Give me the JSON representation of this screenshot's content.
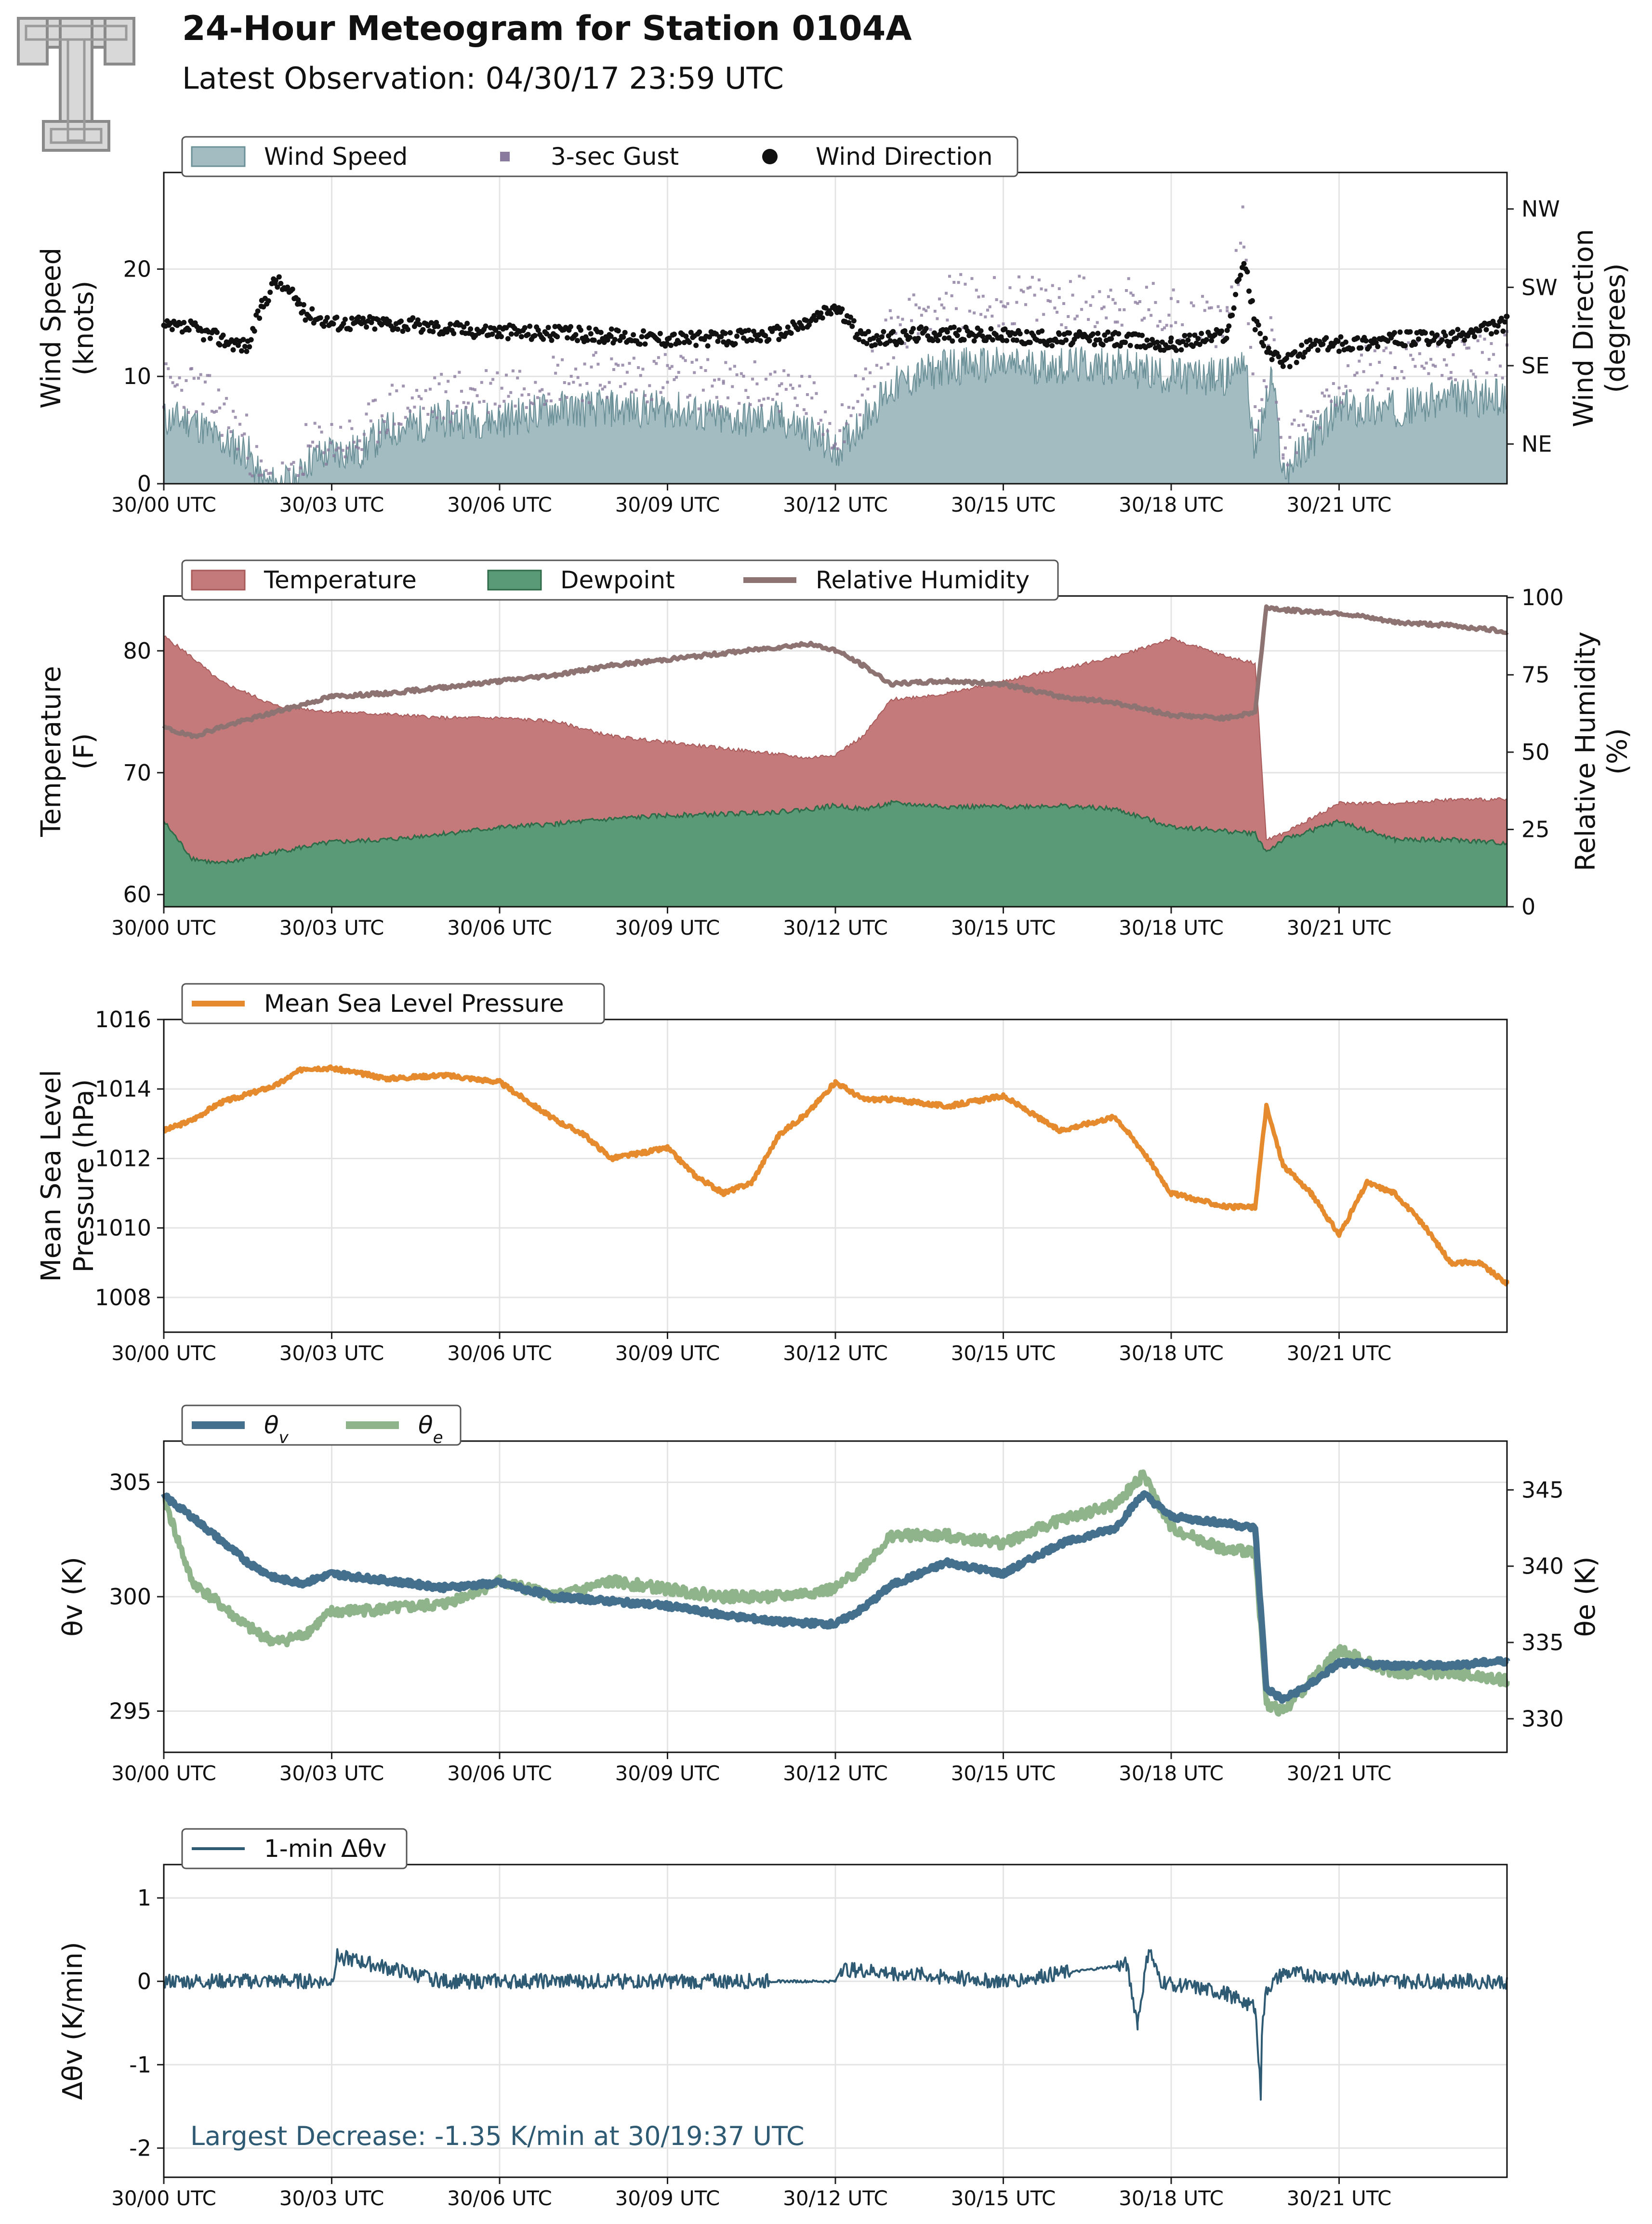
{
  "header": {
    "title": "24-Hour Meteogram for Station 0104A",
    "subtitle": "Latest Observation: 04/30/17 23:59 UTC"
  },
  "colors": {
    "wind_speed_fill": "#a3bcc2",
    "wind_speed_line": "#6b9098",
    "gust": "#8a7a9e",
    "wind_dir": "#111111",
    "temperature": "#c47a7a",
    "dewpoint": "#5a9a76",
    "rh": "#8e7373",
    "mslp": "#e68a2e",
    "theta_v": "#44708e",
    "theta_e": "#8fb38a",
    "dtheta": "#2e5a73",
    "annotation": "#2e5a73"
  },
  "x_ticks": [
    "30/00 UTC",
    "30/03 UTC",
    "30/06 UTC",
    "30/09 UTC",
    "30/12 UTC",
    "30/15 UTC",
    "30/18 UTC",
    "30/21 UTC"
  ],
  "chart_data": [
    {
      "type": "area",
      "legend": [
        "Wind Speed",
        "3-sec Gust",
        "Wind Direction"
      ],
      "ylabel_left": [
        "Wind Speed",
        "(knots)"
      ],
      "ylabel_right": [
        "Wind Direction",
        "(degrees)"
      ],
      "ylim": [
        0,
        29
      ],
      "yticks": [
        0,
        10,
        20
      ],
      "right_ylim": [
        0,
        29
      ],
      "right_ticks": [
        {
          "label": "NE",
          "pos": 3.7
        },
        {
          "label": "SE",
          "pos": 11
        },
        {
          "label": "SW",
          "pos": 18.3
        },
        {
          "label": "NW",
          "pos": 25.6
        }
      ],
      "x_hours": [
        0,
        0.5,
        1,
        1.5,
        1.75,
        2,
        2.4,
        2.5,
        3,
        3.5,
        4,
        5,
        6,
        7,
        8,
        9,
        10,
        11,
        11.5,
        12,
        12.5,
        13,
        13.5,
        14,
        15,
        16,
        17,
        18,
        19,
        19.3,
        19.5,
        19.8,
        20,
        20.5,
        21,
        22,
        23,
        24
      ],
      "wind_speed": [
        6,
        6,
        4,
        3,
        0,
        0,
        0,
        2,
        3,
        3,
        5,
        6,
        6,
        7,
        7,
        7,
        6,
        6,
        5,
        3,
        6,
        9,
        10,
        11,
        11,
        11,
        11,
        10,
        10,
        12,
        3,
        10,
        1,
        4,
        7,
        7,
        8,
        8
      ],
      "gust": [
        9,
        9,
        7,
        4,
        0,
        0,
        0,
        3,
        4,
        4,
        7,
        8,
        9,
        10,
        10,
        10,
        9,
        9,
        8,
        5,
        9,
        14,
        16,
        17,
        17,
        17,
        17,
        16,
        15,
        24,
        6,
        14,
        3,
        6,
        10,
        11,
        12,
        12
      ],
      "wind_dir": [
        14.5,
        14.5,
        13.5,
        12.8,
        16.5,
        19,
        17,
        16,
        15,
        15,
        15,
        14.5,
        14.2,
        14,
        13.8,
        13.5,
        13.5,
        14,
        15,
        16.5,
        13.5,
        13.5,
        14,
        14,
        13.8,
        13.5,
        13.5,
        13,
        14,
        21,
        15,
        12,
        11,
        13,
        13,
        13.5,
        13.5,
        15
      ]
    },
    {
      "type": "area",
      "legend": [
        "Temperature",
        "Dewpoint",
        "Relative Humidity"
      ],
      "ylabel_left": [
        "Temperature",
        "(F)"
      ],
      "ylabel_right": [
        "Relative Humidity",
        "(%)"
      ],
      "ylim": [
        59,
        84.5
      ],
      "yticks": [
        60,
        70,
        80
      ],
      "right_ylim": [
        0,
        100.5
      ],
      "right_ticks": [
        0,
        25,
        50,
        75,
        100
      ],
      "x_hours": [
        0,
        0.5,
        1,
        2,
        3,
        4,
        5,
        6,
        7,
        8,
        9,
        10,
        11,
        11.5,
        12,
        12.5,
        13,
        14,
        15,
        16,
        17,
        18,
        19,
        19.5,
        19.7,
        20,
        21,
        22,
        23,
        24
      ],
      "temperature": [
        81.2,
        79.5,
        77.5,
        75.5,
        75,
        74.8,
        74.5,
        74.5,
        74.2,
        73,
        72.5,
        72,
        71.5,
        71.2,
        71.5,
        73,
        76,
        76.5,
        77.5,
        78.5,
        79.5,
        81,
        79.5,
        79,
        64.5,
        65,
        67.5,
        67.5,
        67.8,
        67.8
      ],
      "dewpoint": [
        66,
        63,
        62.5,
        63.5,
        64.3,
        64.5,
        65,
        65.5,
        65.8,
        66.2,
        66.5,
        66.6,
        66.8,
        67,
        67.3,
        67,
        67.5,
        67.2,
        67.2,
        67.3,
        67,
        65.6,
        65.2,
        65,
        63.5,
        64.5,
        66,
        64.5,
        64.5,
        64.2
      ],
      "rh": [
        58,
        55,
        58,
        63,
        68,
        69,
        71,
        73,
        75,
        78,
        80,
        82,
        84,
        85,
        83,
        78,
        72,
        73,
        72,
        68,
        66,
        62,
        61,
        63,
        97,
        96,
        95,
        92,
        91,
        89
      ]
    },
    {
      "type": "line",
      "legend": [
        "Mean Sea Level Pressure"
      ],
      "ylabel_left": [
        "Mean Sea Level",
        "Pressure (hPa)"
      ],
      "ylim": [
        1007,
        1016
      ],
      "yticks": [
        1008,
        1010,
        1012,
        1014,
        1016
      ],
      "x_hours": [
        0,
        0.5,
        1,
        2,
        2.5,
        3,
        4,
        5,
        6,
        7,
        7.5,
        8,
        9,
        9.5,
        10,
        10.5,
        11,
        11.5,
        12,
        12.5,
        13,
        14,
        15,
        16,
        17,
        17.5,
        18,
        19,
        19.5,
        19.7,
        20,
        20.5,
        21,
        21.5,
        22,
        22.5,
        23,
        23.5,
        24
      ],
      "mslp": [
        1012.8,
        1013.1,
        1013.6,
        1014.1,
        1014.6,
        1014.6,
        1014.3,
        1014.4,
        1014.2,
        1013.1,
        1012.7,
        1012.0,
        1012.3,
        1011.5,
        1011.0,
        1011.3,
        1012.7,
        1013.3,
        1014.2,
        1013.7,
        1013.7,
        1013.5,
        1013.8,
        1012.8,
        1013.2,
        1012.2,
        1011.0,
        1010.6,
        1010.6,
        1013.5,
        1011.8,
        1011.0,
        1009.8,
        1011.3,
        1011.0,
        1010.1,
        1009.0,
        1009.0,
        1008.4
      ]
    },
    {
      "type": "line",
      "legend": [
        "θv",
        "θe"
      ],
      "ylabel_left": "θv (K)",
      "ylabel_right": "θe (K)",
      "ylim": [
        293.2,
        306.8
      ],
      "yticks": [
        295,
        300,
        305
      ],
      "right_ylim": [
        327.8,
        348.2
      ],
      "right_ticks": [
        330,
        335,
        340,
        345
      ],
      "x_hours": [
        0,
        0.5,
        1,
        1.5,
        2,
        2.5,
        3,
        4,
        5,
        6,
        7,
        8,
        9,
        10,
        11,
        12,
        12.5,
        13,
        14,
        15,
        16,
        17,
        17.5,
        18,
        19,
        19.5,
        19.7,
        20,
        20.5,
        21,
        22,
        23,
        24
      ],
      "theta_v": [
        304.4,
        303.5,
        302.5,
        301.5,
        300.8,
        300.6,
        301.0,
        300.7,
        300.4,
        300.6,
        300.0,
        299.8,
        299.6,
        299.2,
        298.9,
        298.8,
        299.5,
        300.5,
        301.5,
        301.0,
        302.3,
        303.0,
        304.5,
        303.5,
        303.2,
        303.0,
        296.0,
        295.5,
        296.2,
        297.1,
        297.0,
        297.0,
        297.2
      ],
      "theta_e": [
        344.5,
        339.0,
        337.5,
        336.0,
        335.0,
        335.5,
        337.0,
        337.2,
        337.5,
        339.0,
        338.0,
        339.0,
        338.5,
        338.0,
        338.0,
        338.5,
        340.0,
        342.0,
        342.0,
        341.5,
        343.0,
        344.0,
        346.0,
        342.5,
        341.0,
        341.0,
        331.0,
        330.5,
        332.5,
        334.5,
        333.0,
        333.0,
        332.5
      ]
    },
    {
      "type": "line",
      "legend": [
        "1-min Δθv"
      ],
      "ylabel_left": "Δθv (K/min)",
      "ylim": [
        -2.35,
        1.4
      ],
      "yticks": [
        -2,
        -1,
        0,
        1
      ],
      "x_hours": [
        0,
        3,
        3.1,
        5,
        7.5,
        10,
        12,
        12.1,
        15,
        17.2,
        17.4,
        17.6,
        17.8,
        19.0,
        19.5,
        19.6,
        19.62,
        19.7,
        20,
        22,
        24
      ],
      "dtheta": [
        0,
        0,
        0.3,
        0,
        0,
        0,
        0,
        0.15,
        0,
        0.2,
        -0.5,
        0.4,
        0,
        -0.15,
        -0.3,
        -1.35,
        -0.6,
        -0.1,
        0.1,
        0,
        0
      ],
      "annotation": "Largest Decrease: -1.35 K/min at 30/19:37 UTC"
    }
  ]
}
